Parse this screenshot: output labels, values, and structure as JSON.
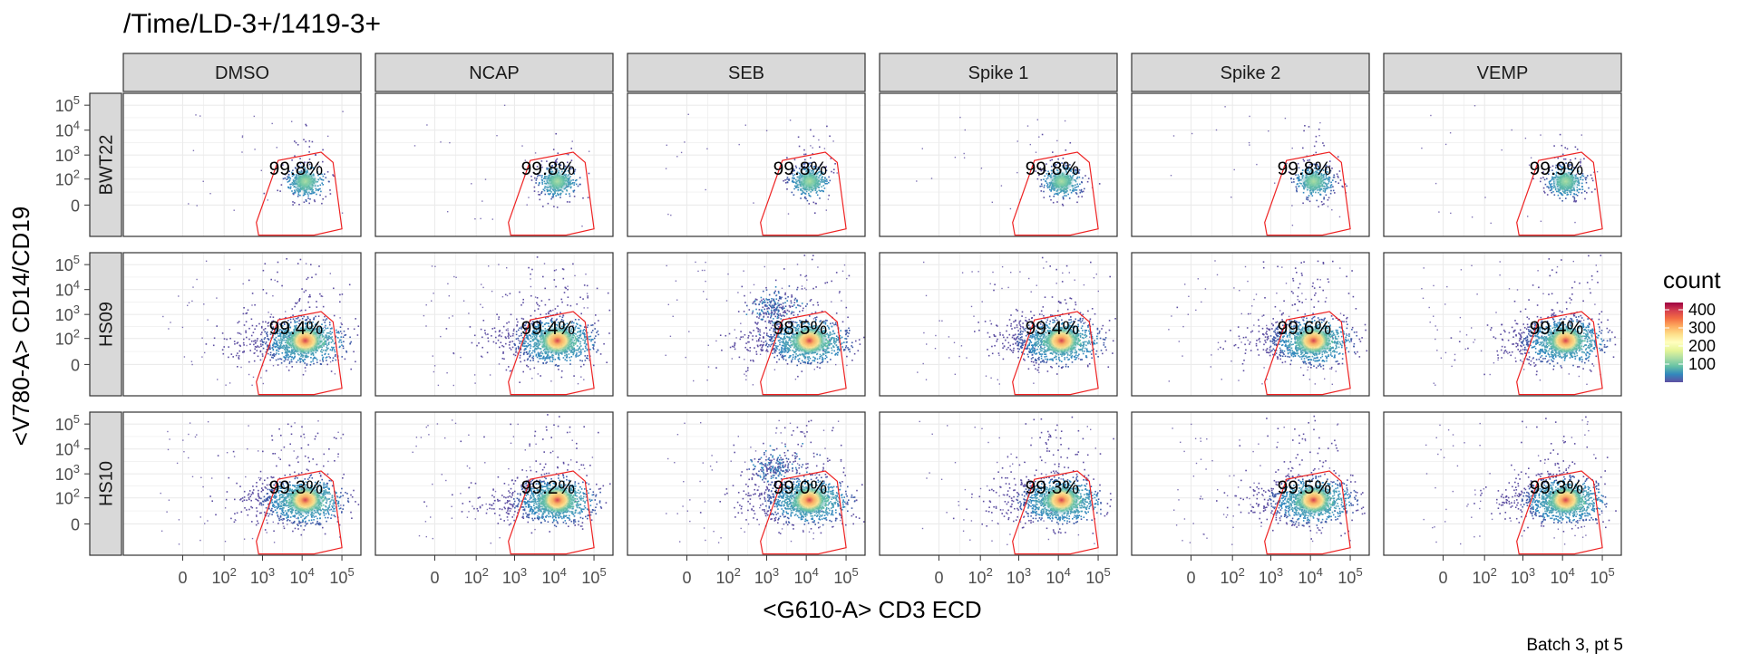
{
  "chart_data": {
    "type": "scatter",
    "subtype": "faceted 2D density (flow cytometry) with gate polygons",
    "title": "/Time/LD-3+/1419-3+",
    "xlabel": "<G610-A> CD3 ECD",
    "ylabel": "<V780-A> CD14/CD19",
    "caption": "Batch 3, pt 5",
    "x_scale": "biexponential",
    "y_scale": "biexponential",
    "x_ticks": [
      {
        "value": 0,
        "base": "0",
        "exp": ""
      },
      {
        "value": 100,
        "base": "10",
        "exp": "2"
      },
      {
        "value": 1000,
        "base": "10",
        "exp": "3"
      },
      {
        "value": 10000,
        "base": "10",
        "exp": "4"
      },
      {
        "value": 100000,
        "base": "10",
        "exp": "5"
      }
    ],
    "y_ticks": [
      {
        "value": 0,
        "base": "0",
        "exp": ""
      },
      {
        "value": 100,
        "base": "10",
        "exp": "2"
      },
      {
        "value": 1000,
        "base": "10",
        "exp": "3"
      },
      {
        "value": 10000,
        "base": "10",
        "exp": "4"
      },
      {
        "value": 100000,
        "base": "10",
        "exp": "5"
      }
    ],
    "columns": [
      "DMSO",
      "NCAP",
      "SEB",
      "Spike 1",
      "Spike 2",
      "VEMP"
    ],
    "rows": [
      "BWT22",
      "HS09",
      "HS10"
    ],
    "gate_percentages": [
      [
        "99.8%",
        "99.8%",
        "99.8%",
        "99.8%",
        "99.8%",
        "99.9%"
      ],
      [
        "99.4%",
        "99.4%",
        "98.5%",
        "99.4%",
        "99.6%",
        "99.4%"
      ],
      [
        "99.3%",
        "99.2%",
        "99.0%",
        "99.3%",
        "99.5%",
        "99.3%"
      ]
    ],
    "population_center": {
      "x": 12000,
      "y": 80
    },
    "gate_polygon": [
      [
        700,
        -40
      ],
      [
        2500,
        600
      ],
      [
        30000,
        1300
      ],
      [
        60000,
        500
      ],
      [
        100000,
        -80
      ],
      [
        20000,
        -150
      ],
      [
        800,
        -150
      ]
    ],
    "grid": true,
    "legend": {
      "title": "count",
      "placement": "right",
      "labels": [
        "400",
        "300",
        "200",
        "100"
      ],
      "values": [
        400,
        300,
        200,
        100
      ],
      "range": [
        0,
        440
      ],
      "palette": [
        "#9e0142",
        "#d53e4f",
        "#f46d43",
        "#fdae61",
        "#fee08b",
        "#ffffbf",
        "#e6f598",
        "#abdda4",
        "#66c2a5",
        "#3288bd",
        "#5e4fa2"
      ]
    },
    "colors": {
      "panel_border": "#333333",
      "strip_fill": "#d9d9d9",
      "grid": "#ebebeb",
      "gate": "#ee2222"
    }
  }
}
